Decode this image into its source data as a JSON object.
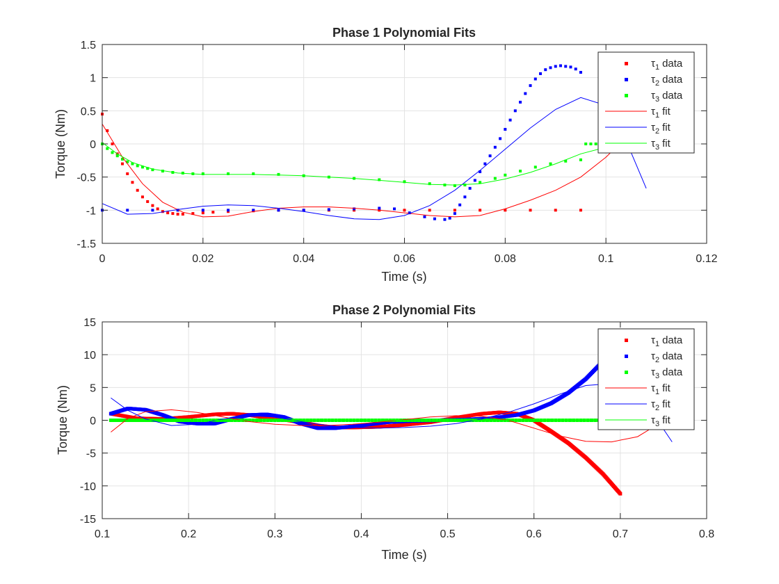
{
  "colors": {
    "tau1": "#ff0000",
    "tau2": "#0000ff",
    "tau3": "#00ff00",
    "grid": "#e3e3e3",
    "axis": "#262626"
  },
  "plots": [
    {
      "title": "Phase 1 Polynomial Fits",
      "xlabel": "Time (s)",
      "ylabel": "Torque (Nm)",
      "xlim": [
        0,
        0.12
      ],
      "ylim": [
        -1.5,
        1.5
      ],
      "xticks": [
        0,
        0.02,
        0.04,
        0.06,
        0.08,
        0.1,
        0.12
      ],
      "xtick_labels": [
        "0",
        "0.02",
        "0.04",
        "0.06",
        "0.08",
        "0.1",
        "0.12"
      ],
      "yticks": [
        -1.5,
        -1,
        -0.5,
        0,
        0.5,
        1,
        1.5
      ],
      "ytick_labels": [
        "-1.5",
        "-1",
        "-0.5",
        "0",
        "0.5",
        "1",
        "1.5"
      ],
      "legend": [
        {
          "sym": "τ",
          "sub": "1",
          "text": "data",
          "style": "marker",
          "color_key": "tau1"
        },
        {
          "sym": "τ",
          "sub": "2",
          "text": "data",
          "style": "marker",
          "color_key": "tau2"
        },
        {
          "sym": "τ",
          "sub": "3",
          "text": "data",
          "style": "marker",
          "color_key": "tau3"
        },
        {
          "sym": "τ",
          "sub": "1",
          "text": "fit",
          "style": "line",
          "color_key": "tau1"
        },
        {
          "sym": "τ",
          "sub": "2",
          "text": "fit",
          "style": "line",
          "color_key": "tau2"
        },
        {
          "sym": "τ",
          "sub": "3",
          "text": "fit",
          "style": "line",
          "color_key": "tau3"
        }
      ]
    },
    {
      "title": "Phase 2 Polynomial Fits",
      "xlabel": "Time (s)",
      "ylabel": "Torque (Nm)",
      "xlim": [
        0.1,
        0.8
      ],
      "ylim": [
        -15,
        15
      ],
      "xticks": [
        0.1,
        0.2,
        0.3,
        0.4,
        0.5,
        0.6,
        0.7,
        0.8
      ],
      "xtick_labels": [
        "0.1",
        "0.2",
        "0.3",
        "0.4",
        "0.5",
        "0.6",
        "0.7",
        "0.8"
      ],
      "yticks": [
        -15,
        -10,
        -5,
        0,
        5,
        10,
        15
      ],
      "ytick_labels": [
        "-15",
        "-10",
        "-5",
        "0",
        "5",
        "10",
        "15"
      ],
      "legend": [
        {
          "sym": "τ",
          "sub": "1",
          "text": "data",
          "style": "marker",
          "color_key": "tau1"
        },
        {
          "sym": "τ",
          "sub": "2",
          "text": "data",
          "style": "marker",
          "color_key": "tau2"
        },
        {
          "sym": "τ",
          "sub": "3",
          "text": "data",
          "style": "marker",
          "color_key": "tau3"
        },
        {
          "sym": "τ",
          "sub": "1",
          "text": "fit",
          "style": "line",
          "color_key": "tau1"
        },
        {
          "sym": "τ",
          "sub": "2",
          "text": "fit",
          "style": "line",
          "color_key": "tau2"
        },
        {
          "sym": "τ",
          "sub": "3",
          "text": "fit",
          "style": "line",
          "color_key": "tau3"
        }
      ]
    }
  ],
  "chart_data": [
    {
      "type": "scatter",
      "title": "Phase 1 Polynomial Fits",
      "xlabel": "Time (s)",
      "ylabel": "Torque (Nm)",
      "xlim": [
        0,
        0.12
      ],
      "ylim": [
        -1.5,
        1.5
      ],
      "grid": true,
      "legend_position": "top-right",
      "series": [
        {
          "name": "τ1 data",
          "kind": "markers",
          "color_key": "tau1",
          "x": [
            0,
            0.001,
            0.002,
            0.003,
            0.004,
            0.005,
            0.006,
            0.007,
            0.008,
            0.009,
            0.01,
            0.011,
            0.012,
            0.013,
            0.014,
            0.015,
            0.016,
            0.018,
            0.02,
            0.022,
            0.025,
            0.03,
            0.035,
            0.04,
            0.045,
            0.05,
            0.055,
            0.06,
            0.065,
            0.07,
            0.075,
            0.08,
            0.085,
            0.09,
            0.095
          ],
          "y": [
            0.45,
            0.2,
            0.0,
            -0.15,
            -0.3,
            -0.45,
            -0.58,
            -0.7,
            -0.8,
            -0.87,
            -0.93,
            -0.98,
            -1.02,
            -1.04,
            -1.05,
            -1.06,
            -1.06,
            -1.05,
            -1.04,
            -1.03,
            -1.02,
            -1.01,
            -1.0,
            -1.0,
            -1.0,
            -1.0,
            -1.0,
            -1.0,
            -1.0,
            -1.0,
            -1.0,
            -1.0,
            -1.0,
            -1.0,
            -1.0
          ]
        },
        {
          "name": "τ2 data",
          "kind": "markers",
          "color_key": "tau2",
          "x": [
            0,
            0.005,
            0.01,
            0.015,
            0.02,
            0.025,
            0.03,
            0.035,
            0.04,
            0.045,
            0.05,
            0.055,
            0.058,
            0.061,
            0.064,
            0.066,
            0.068,
            0.069,
            0.07,
            0.071,
            0.072,
            0.073,
            0.074,
            0.075,
            0.076,
            0.077,
            0.078,
            0.079,
            0.08,
            0.081,
            0.082,
            0.083,
            0.084,
            0.085,
            0.086,
            0.087,
            0.088,
            0.089,
            0.09,
            0.091,
            0.092,
            0.093,
            0.094,
            0.095
          ],
          "y": [
            -1.0,
            -1.0,
            -1.0,
            -1.0,
            -1.0,
            -1.0,
            -1.0,
            -1.0,
            -1.0,
            -0.99,
            -0.98,
            -0.97,
            -0.98,
            -1.04,
            -1.1,
            -1.13,
            -1.14,
            -1.12,
            -1.05,
            -0.92,
            -0.8,
            -0.67,
            -0.55,
            -0.42,
            -0.3,
            -0.18,
            -0.05,
            0.08,
            0.22,
            0.36,
            0.5,
            0.63,
            0.76,
            0.88,
            0.98,
            1.06,
            1.12,
            1.15,
            1.17,
            1.18,
            1.17,
            1.16,
            1.13,
            1.08
          ]
        },
        {
          "name": "τ3 data",
          "kind": "markers",
          "color_key": "tau3",
          "x": [
            0,
            0.001,
            0.002,
            0.003,
            0.004,
            0.005,
            0.006,
            0.007,
            0.008,
            0.009,
            0.01,
            0.012,
            0.014,
            0.016,
            0.018,
            0.02,
            0.025,
            0.03,
            0.035,
            0.04,
            0.045,
            0.05,
            0.055,
            0.06,
            0.065,
            0.068,
            0.07,
            0.072,
            0.075,
            0.078,
            0.08,
            0.083,
            0.086,
            0.089,
            0.092,
            0.095,
            0.096,
            0.097,
            0.098,
            0.099,
            0.1
          ],
          "y": [
            0.0,
            -0.07,
            -0.13,
            -0.18,
            -0.23,
            -0.27,
            -0.3,
            -0.33,
            -0.35,
            -0.37,
            -0.39,
            -0.41,
            -0.43,
            -0.44,
            -0.45,
            -0.45,
            -0.45,
            -0.45,
            -0.46,
            -0.48,
            -0.5,
            -0.52,
            -0.54,
            -0.57,
            -0.6,
            -0.62,
            -0.63,
            -0.62,
            -0.58,
            -0.52,
            -0.47,
            -0.41,
            -0.35,
            -0.3,
            -0.26,
            -0.24,
            0.0,
            0.0,
            0.0,
            0.0,
            0.0
          ]
        },
        {
          "name": "τ1 fit",
          "kind": "line",
          "color_key": "tau1",
          "x": [
            0,
            0.004,
            0.008,
            0.012,
            0.016,
            0.02,
            0.025,
            0.03,
            0.035,
            0.04,
            0.045,
            0.05,
            0.055,
            0.06,
            0.065,
            0.07,
            0.075,
            0.08,
            0.085,
            0.09,
            0.095,
            0.1,
            0.104
          ],
          "y": [
            0.3,
            -0.2,
            -0.6,
            -0.88,
            -1.03,
            -1.1,
            -1.09,
            -1.02,
            -0.97,
            -0.95,
            -0.95,
            -0.97,
            -1.0,
            -1.04,
            -1.08,
            -1.1,
            -1.08,
            -0.98,
            -0.85,
            -0.7,
            -0.5,
            -0.2,
            0.1
          ]
        },
        {
          "name": "τ2 fit",
          "kind": "line",
          "color_key": "tau2",
          "x": [
            0,
            0.005,
            0.01,
            0.015,
            0.02,
            0.025,
            0.03,
            0.035,
            0.04,
            0.045,
            0.05,
            0.055,
            0.06,
            0.065,
            0.07,
            0.075,
            0.08,
            0.085,
            0.09,
            0.095,
            0.1,
            0.104,
            0.108
          ],
          "y": [
            -0.9,
            -1.06,
            -1.05,
            -0.99,
            -0.94,
            -0.92,
            -0.93,
            -0.97,
            -1.02,
            -1.08,
            -1.13,
            -1.14,
            -1.08,
            -0.93,
            -0.7,
            -0.4,
            -0.08,
            0.24,
            0.52,
            0.7,
            0.58,
            0.05,
            -0.67
          ]
        },
        {
          "name": "τ3 fit",
          "kind": "line",
          "color_key": "tau3",
          "x": [
            0,
            0.003,
            0.006,
            0.01,
            0.015,
            0.02,
            0.025,
            0.03,
            0.035,
            0.04,
            0.045,
            0.05,
            0.055,
            0.06,
            0.065,
            0.07,
            0.075,
            0.08,
            0.085,
            0.09,
            0.095,
            0.1,
            0.104
          ],
          "y": [
            0.02,
            -0.15,
            -0.28,
            -0.38,
            -0.44,
            -0.46,
            -0.46,
            -0.46,
            -0.47,
            -0.48,
            -0.5,
            -0.52,
            -0.55,
            -0.58,
            -0.61,
            -0.62,
            -0.6,
            -0.53,
            -0.43,
            -0.3,
            -0.15,
            -0.05,
            0.0
          ]
        }
      ]
    },
    {
      "type": "scatter",
      "title": "Phase 2 Polynomial Fits",
      "xlabel": "Time (s)",
      "ylabel": "Torque (Nm)",
      "xlim": [
        0.1,
        0.8
      ],
      "ylim": [
        -15,
        15
      ],
      "grid": true,
      "legend_position": "top-right",
      "series": [
        {
          "name": "τ1 data",
          "kind": "dense-markers",
          "color_key": "tau1",
          "x": [
            0.11,
            0.14,
            0.17,
            0.2,
            0.23,
            0.25,
            0.27,
            0.29,
            0.31,
            0.33,
            0.35,
            0.37,
            0.39,
            0.42,
            0.45,
            0.48,
            0.51,
            0.54,
            0.56,
            0.58,
            0.6,
            0.62,
            0.64,
            0.66,
            0.68,
            0.7
          ],
          "y": [
            1.0,
            0.3,
            0.2,
            0.5,
            0.9,
            1.0,
            0.8,
            0.4,
            0.1,
            -0.3,
            -0.8,
            -1.1,
            -1.1,
            -1.0,
            -0.7,
            -0.3,
            0.4,
            1.0,
            1.2,
            1.0,
            0.0,
            -1.7,
            -3.5,
            -5.7,
            -8.2,
            -11.2
          ]
        },
        {
          "name": "τ2 data",
          "kind": "dense-markers",
          "color_key": "tau2",
          "x": [
            0.11,
            0.13,
            0.15,
            0.17,
            0.19,
            0.21,
            0.23,
            0.25,
            0.27,
            0.29,
            0.31,
            0.33,
            0.35,
            0.37,
            0.4,
            0.43,
            0.46,
            0.49,
            0.52,
            0.55,
            0.58,
            0.6,
            0.62,
            0.64,
            0.66,
            0.68,
            0.7
          ],
          "y": [
            1.0,
            1.8,
            1.6,
            0.8,
            -0.2,
            -0.5,
            -0.5,
            0.2,
            0.8,
            0.9,
            0.5,
            -0.5,
            -1.2,
            -1.2,
            -0.8,
            -0.3,
            -0.1,
            0.0,
            0.1,
            0.3,
            0.8,
            1.5,
            2.6,
            4.2,
            6.3,
            9.0,
            13.5
          ]
        },
        {
          "name": "τ3 data",
          "kind": "dense-markers",
          "color_key": "tau3",
          "x": [
            0.11,
            0.2,
            0.3,
            0.4,
            0.5,
            0.6,
            0.7
          ],
          "y": [
            0.0,
            0.0,
            0.0,
            0.0,
            0.0,
            0.0,
            0.0
          ]
        },
        {
          "name": "τ1 fit",
          "kind": "line",
          "color_key": "tau1",
          "x": [
            0.11,
            0.13,
            0.15,
            0.18,
            0.21,
            0.24,
            0.27,
            0.3,
            0.33,
            0.36,
            0.39,
            0.42,
            0.45,
            0.48,
            0.51,
            0.54,
            0.57,
            0.6,
            0.63,
            0.66,
            0.69,
            0.72,
            0.74,
            0.76
          ],
          "y": [
            -1.8,
            0.3,
            1.3,
            1.6,
            1.2,
            0.5,
            -0.2,
            -0.6,
            -0.8,
            -0.8,
            -0.6,
            -0.3,
            0.1,
            0.5,
            0.7,
            0.6,
            0.0,
            -1.2,
            -2.4,
            -3.2,
            -3.3,
            -2.5,
            -0.9,
            0.7
          ]
        },
        {
          "name": "τ2 fit",
          "kind": "line",
          "color_key": "tau2",
          "x": [
            0.11,
            0.13,
            0.15,
            0.18,
            0.21,
            0.24,
            0.27,
            0.3,
            0.33,
            0.36,
            0.39,
            0.42,
            0.45,
            0.48,
            0.51,
            0.54,
            0.57,
            0.6,
            0.63,
            0.66,
            0.69,
            0.72,
            0.74,
            0.76
          ],
          "y": [
            3.4,
            1.5,
            0.2,
            -0.8,
            -0.6,
            0.2,
            0.7,
            0.5,
            -0.2,
            -0.8,
            -1.1,
            -1.2,
            -1.1,
            -0.9,
            -0.5,
            0.2,
            1.2,
            2.5,
            4.0,
            5.3,
            5.6,
            3.6,
            0.6,
            -3.3
          ]
        },
        {
          "name": "τ3 fit",
          "kind": "line",
          "color_key": "tau3",
          "x": [
            0.11,
            0.3,
            0.5,
            0.7,
            0.76
          ],
          "y": [
            0.0,
            0.0,
            0.0,
            0.0,
            0.0
          ]
        }
      ]
    }
  ]
}
